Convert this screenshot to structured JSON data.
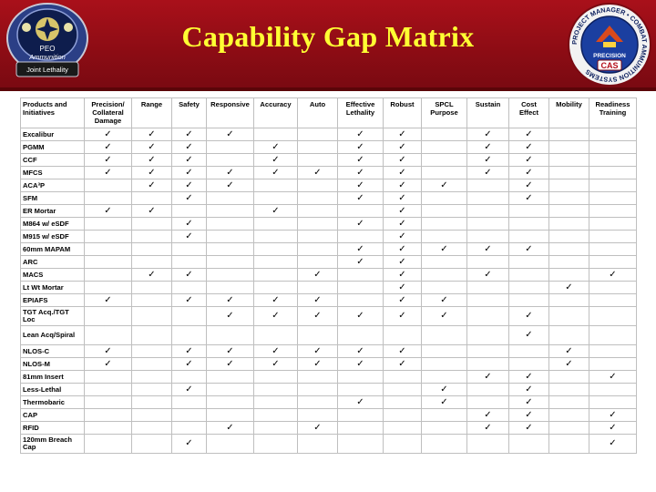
{
  "header": {
    "title": "Capability Gap Matrix",
    "left_logo": {
      "text_lines": [
        "PEO",
        "Ammunition",
        "Joint Lethality"
      ],
      "colors": {
        "ring": "#2b3f86",
        "fill": "#0e1d4d"
      }
    },
    "right_logo": {
      "ring_text": "PROJECT MANAGER • COMBAT AMMUNITION SYSTEMS",
      "center_text": "PRECISION",
      "badge": "CAS"
    }
  },
  "colors": {
    "banner": "#8c0c14",
    "title": "#ffff33",
    "grid": "#bfbfbf"
  },
  "check_glyph": "✓",
  "matrix": {
    "columns": [
      "Products and Initiatives",
      "Precision/ Collateral Damage",
      "Range",
      "Safety",
      "Responsive",
      "Accuracy",
      "Auto",
      "Effective Lethality",
      "Robust",
      "SPCL Purpose",
      "Sustain",
      "Cost Effect",
      "Mobility",
      "Readiness Training"
    ],
    "rows": [
      {
        "name": "Excalibur",
        "checks": [
          1,
          1,
          1,
          1,
          0,
          0,
          1,
          1,
          0,
          1,
          1,
          0,
          0
        ]
      },
      {
        "name": "PGMM",
        "checks": [
          1,
          1,
          1,
          0,
          1,
          0,
          1,
          1,
          0,
          1,
          1,
          0,
          0
        ]
      },
      {
        "name": "CCF",
        "checks": [
          1,
          1,
          1,
          0,
          1,
          0,
          1,
          1,
          0,
          1,
          1,
          0,
          0
        ]
      },
      {
        "name": "MFCS",
        "checks": [
          1,
          1,
          1,
          1,
          1,
          1,
          1,
          1,
          0,
          1,
          1,
          0,
          0
        ]
      },
      {
        "name": "ACA³P",
        "checks": [
          0,
          1,
          1,
          1,
          0,
          0,
          1,
          1,
          1,
          0,
          1,
          0,
          0
        ]
      },
      {
        "name": "SFM",
        "checks": [
          0,
          0,
          1,
          0,
          0,
          0,
          1,
          1,
          0,
          0,
          1,
          0,
          0
        ]
      },
      {
        "name": "ER Mortar",
        "checks": [
          1,
          1,
          0,
          0,
          1,
          0,
          0,
          1,
          0,
          0,
          0,
          0,
          0
        ]
      },
      {
        "name": "M864 w/ eSDF",
        "checks": [
          0,
          0,
          1,
          0,
          0,
          0,
          1,
          1,
          0,
          0,
          0,
          0,
          0
        ]
      },
      {
        "name": "M915 w/ eSDF",
        "checks": [
          0,
          0,
          1,
          0,
          0,
          0,
          0,
          1,
          0,
          0,
          0,
          0,
          0
        ]
      },
      {
        "name": "60mm MAPAM",
        "checks": [
          0,
          0,
          0,
          0,
          0,
          0,
          1,
          1,
          1,
          1,
          1,
          0,
          0
        ]
      },
      {
        "name": "ARC",
        "checks": [
          0,
          0,
          0,
          0,
          0,
          0,
          1,
          1,
          0,
          0,
          0,
          0,
          0
        ]
      },
      {
        "name": "MACS",
        "checks": [
          0,
          1,
          1,
          0,
          0,
          1,
          0,
          1,
          0,
          1,
          0,
          0,
          1
        ]
      },
      {
        "name": "Lt Wt Mortar",
        "checks": [
          0,
          0,
          0,
          0,
          0,
          0,
          0,
          1,
          0,
          0,
          0,
          1,
          0
        ]
      },
      {
        "name": "EPIAFS",
        "checks": [
          1,
          0,
          1,
          1,
          1,
          1,
          0,
          1,
          1,
          0,
          0,
          0,
          0
        ]
      },
      {
        "name": "TGT Acq./TGT Loc",
        "checks": [
          0,
          0,
          0,
          1,
          1,
          1,
          1,
          1,
          1,
          0,
          1,
          0,
          0
        ]
      },
      {
        "name": "Lean Acq/Spiral",
        "checks": [
          0,
          0,
          0,
          0,
          0,
          0,
          0,
          0,
          0,
          0,
          1,
          0,
          0
        ]
      },
      {
        "name": "NLOS-C",
        "checks": [
          1,
          0,
          1,
          1,
          1,
          1,
          1,
          1,
          0,
          0,
          0,
          1,
          0
        ]
      },
      {
        "name": "NLOS-M",
        "checks": [
          1,
          0,
          1,
          1,
          1,
          1,
          1,
          1,
          0,
          0,
          0,
          1,
          0
        ]
      },
      {
        "name": "81mm Insert",
        "checks": [
          0,
          0,
          0,
          0,
          0,
          0,
          0,
          0,
          0,
          1,
          1,
          0,
          1
        ]
      },
      {
        "name": "Less-Lethal",
        "checks": [
          0,
          0,
          1,
          0,
          0,
          0,
          0,
          0,
          1,
          0,
          1,
          0,
          0
        ]
      },
      {
        "name": "Thermobaric",
        "checks": [
          0,
          0,
          0,
          0,
          0,
          0,
          1,
          0,
          1,
          0,
          1,
          0,
          0
        ]
      },
      {
        "name": "CAP",
        "checks": [
          0,
          0,
          0,
          0,
          0,
          0,
          0,
          0,
          0,
          1,
          1,
          0,
          1
        ]
      },
      {
        "name": "RFID",
        "checks": [
          0,
          0,
          0,
          1,
          0,
          1,
          0,
          0,
          0,
          1,
          1,
          0,
          1
        ]
      },
      {
        "name": "120mm Breach Cap",
        "checks": [
          0,
          0,
          1,
          0,
          0,
          0,
          0,
          0,
          0,
          0,
          0,
          0,
          1
        ]
      }
    ]
  }
}
